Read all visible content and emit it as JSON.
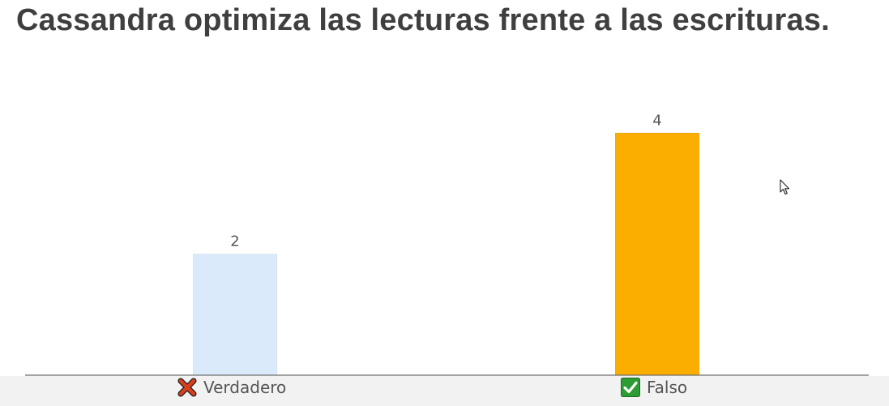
{
  "question": {
    "title": "Cassandra optimiza las lecturas frente a las escrituras."
  },
  "options": [
    {
      "label": "Verdadero",
      "icon": "cross-mark-icon",
      "correct": false
    },
    {
      "label": "Falso",
      "icon": "check-mark-icon",
      "correct": true
    }
  ],
  "colors": {
    "title": "#3f3f3f",
    "incorrect_bar": "#dbeafa",
    "correct_bar": "#fbad00",
    "cross_icon": "#d9411e",
    "check_icon_bg": "#2e9c34",
    "axis": "#6b6b6b"
  },
  "chart_data": {
    "type": "bar",
    "categories": [
      "Verdadero",
      "Falso"
    ],
    "values": [
      2,
      4
    ],
    "value_labels": [
      "2",
      "4"
    ],
    "ylim": [
      0,
      4.5
    ],
    "grid": false,
    "title": "",
    "xlabel": "",
    "ylabel": ""
  }
}
